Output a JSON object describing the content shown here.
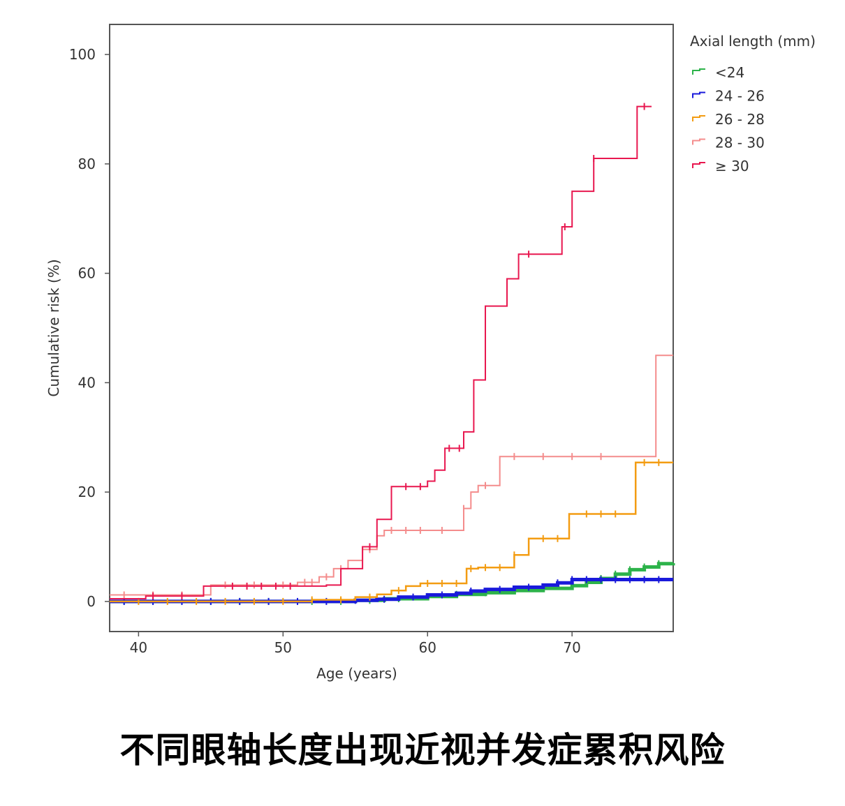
{
  "caption": "不同眼轴长度出现近视并发症累积风险",
  "colors": {
    "frame": "#555555",
    "axis": "#555555",
    "text": "#333333"
  },
  "chart_data": {
    "type": "line",
    "step": true,
    "xlabel": "Age (years)",
    "ylabel": "Cumulative risk (%)",
    "xlim": [
      38,
      77
    ],
    "ylim": [
      -5.5,
      105.5
    ],
    "xticks": [
      40,
      50,
      60,
      70
    ],
    "yticks": [
      0,
      20,
      40,
      60,
      80,
      100
    ],
    "legend": {
      "title": "Axial length (mm)",
      "placement": "right"
    },
    "series": [
      {
        "name": "<24",
        "color": "#2db34a",
        "x": [
          38,
          50,
          55,
          57,
          60,
          62,
          64,
          66,
          68,
          70,
          71,
          72,
          73,
          74,
          75,
          76,
          77
        ],
        "y": [
          0,
          0,
          0.2,
          0.5,
          0.9,
          1.3,
          1.6,
          2.0,
          2.4,
          2.9,
          3.5,
          4.2,
          5.0,
          5.8,
          6.3,
          6.9,
          7.0
        ],
        "censor": [
          39,
          41,
          43,
          45,
          47,
          49,
          52,
          54,
          56,
          58,
          60,
          62,
          64,
          66,
          68,
          70,
          72,
          73,
          74,
          75,
          76
        ]
      },
      {
        "name": "24 - 26",
        "color": "#1a1adb",
        "x": [
          38,
          50,
          55,
          56.5,
          58,
          60,
          62,
          63,
          64,
          66,
          68,
          69,
          70,
          77
        ],
        "y": [
          0,
          0,
          0.2,
          0.4,
          0.8,
          1.2,
          1.5,
          1.9,
          2.2,
          2.6,
          3.0,
          3.4,
          4.0,
          4.0
        ],
        "censor": [
          39,
          41,
          43,
          45,
          47,
          49,
          51,
          53,
          55,
          57,
          59,
          61,
          63,
          65,
          67,
          69,
          70,
          71,
          72,
          73,
          74,
          75,
          76
        ]
      },
      {
        "name": "26 - 28",
        "color": "#f39c12",
        "x": [
          38,
          52,
          55,
          56.5,
          57.5,
          58.5,
          59.5,
          62.7,
          63.5,
          66,
          67,
          69.8,
          72,
          74.4,
          77
        ],
        "y": [
          0,
          0.3,
          0.8,
          1.3,
          2.0,
          2.8,
          3.3,
          6.0,
          6.2,
          8.5,
          11.5,
          16.0,
          16.0,
          25.4,
          25.4
        ],
        "censor": [
          40,
          42,
          44,
          46,
          48,
          50,
          52,
          54,
          56,
          58,
          60,
          61,
          62,
          63,
          64,
          65,
          66,
          68,
          69,
          71,
          72,
          73,
          75,
          76
        ]
      },
      {
        "name": "28 - 30",
        "color": "#f48c8c",
        "x": [
          38,
          45,
          51,
          52.5,
          53.5,
          54.5,
          55.5,
          56.5,
          57,
          61.5,
          62.5,
          63,
          63.5,
          65,
          75.8,
          77
        ],
        "y": [
          1.2,
          3.0,
          3.5,
          4.5,
          6.0,
          7.5,
          9.5,
          12.0,
          13.0,
          13.0,
          17.0,
          20.0,
          21.2,
          26.5,
          45.0,
          45.0
        ],
        "censor": [
          39,
          41,
          43,
          46,
          48,
          50,
          51.5,
          52,
          53,
          54,
          55.5,
          56,
          57.5,
          58.5,
          59.5,
          61,
          62.5,
          64,
          66,
          68,
          70,
          72
        ]
      },
      {
        "name": "≥ 30",
        "color": "#e8174f",
        "x": [
          38,
          40.5,
          44.5,
          53,
          54,
          55.5,
          56.5,
          57.5,
          60,
          60.5,
          61.2,
          62.5,
          63.2,
          64,
          64.6,
          65.5,
          66.3,
          69.3,
          70,
          71.5,
          72.5,
          74.5,
          75.5
        ],
        "y": [
          0.5,
          1.0,
          2.8,
          3.0,
          6.0,
          10.0,
          15.0,
          21.0,
          22.0,
          24.0,
          28.0,
          31.0,
          40.5,
          54.0,
          54.0,
          59.0,
          63.5,
          68.5,
          75.0,
          81.0,
          81.0,
          90.5,
          90.5
        ],
        "censor": [
          41,
          43,
          46.5,
          47.5,
          48.5,
          49.5,
          50.5,
          56,
          58.5,
          59.5,
          61.5,
          62.2,
          67,
          69.5,
          71.5,
          75
        ]
      }
    ]
  }
}
